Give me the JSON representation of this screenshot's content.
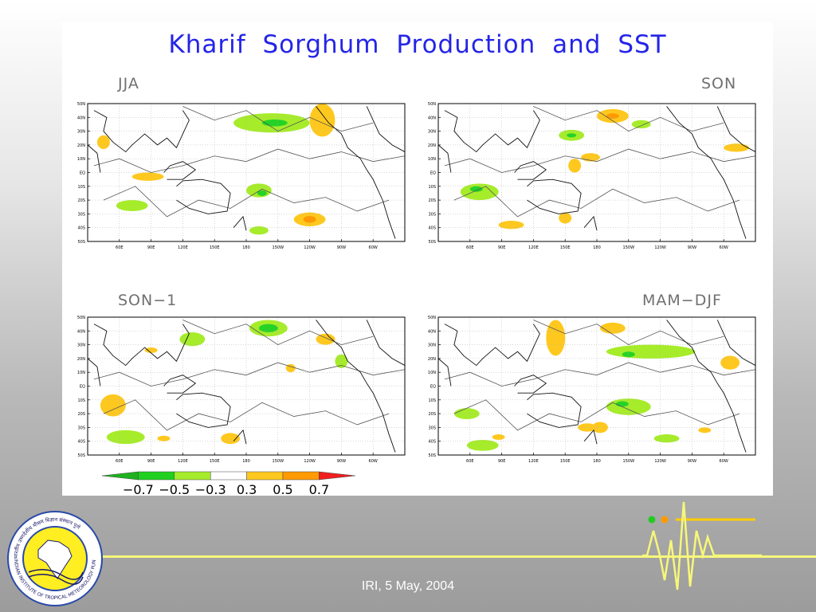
{
  "figure": {
    "title": "Kharif Sorghum Production and SST",
    "panels": [
      {
        "id": "jja",
        "label": "JJA",
        "label_align": "left"
      },
      {
        "id": "son",
        "label": "SON",
        "label_align": "right"
      },
      {
        "id": "son-1",
        "label": "SON−1",
        "label_align": "left"
      },
      {
        "id": "mam-djf",
        "label": "MAM−DJF",
        "label_align": "right"
      }
    ],
    "lat_ticks": [
      "50N",
      "40N",
      "30N",
      "20N",
      "10N",
      "EQ",
      "10S",
      "20S",
      "30S",
      "40S",
      "50S"
    ],
    "lon_ticks": [
      "60E",
      "90E",
      "120E",
      "150E",
      "180",
      "150W",
      "120W",
      "90W",
      "60W"
    ]
  },
  "colorbar": {
    "labels": [
      "−0.7",
      "−0.5",
      "−0.3",
      "0.3",
      "0.5",
      "0.7"
    ],
    "colors": [
      "#1fb11f",
      "#1fd01f",
      "#a6ec2a",
      "#ffffff",
      "#ffc81e",
      "#ff9a00",
      "#f01e1e"
    ]
  },
  "palette": {
    "blue_title": "#2424e8",
    "light_green": "#a6ec2a",
    "green": "#26d226",
    "yellow": "#ffc81e",
    "orange": "#ff9a00",
    "footer_line": "#f7f77a"
  },
  "logo": {
    "ring_text_top": "भारतीय उष्णदेशीय मौसम विज्ञान संस्थान पुणे",
    "ring_text_bottom": "INDIAN INSTITUTE OF TROPICAL METEOROLOGY PUNE"
  },
  "footer": {
    "text": "IRI, 5 May, 2004"
  }
}
